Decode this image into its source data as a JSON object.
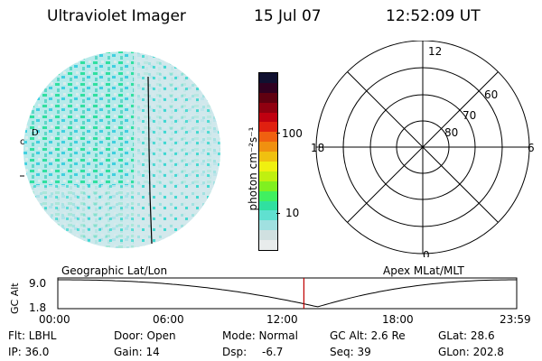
{
  "header": {
    "instrument": "Ultraviolet Imager",
    "date": "15 Jul 07",
    "time": "12:52:09 UT"
  },
  "colorbar": {
    "unit_label": "photon cm⁻²s⁻¹",
    "ticks": [
      "100",
      "10"
    ],
    "colors": [
      "#101030",
      "#300020",
      "#600010",
      "#900010",
      "#c00010",
      "#e02010",
      "#f06010",
      "#f09010",
      "#f0c010",
      "#f0f010",
      "#c0f010",
      "#80f020",
      "#40f060",
      "#30e0a0",
      "#60e0d0",
      "#a0e0e0",
      "#d0e0e0",
      "#e8ecec"
    ]
  },
  "polar": {
    "ring_labels": [
      "60",
      "70",
      "80"
    ],
    "mlt_labels": [
      "12",
      "18",
      "6",
      "0"
    ]
  },
  "track": {
    "left_label": "Geographic Lat/Lon",
    "right_label": "Apex MLat/MLT",
    "ylabel": "GC Alt",
    "y_ticks": [
      "9.0",
      "1.8"
    ],
    "x_ticks": [
      "00:00",
      "06:00",
      "12:00",
      "18:00",
      "23:59"
    ],
    "current_time_fraction": 0.5362,
    "accent_color": "#c00000"
  },
  "info": {
    "row1": [
      "Flt: LBHL",
      "Door: Open",
      "Mode: Normal",
      "GC Alt: 2.6 Re",
      "GLat: 28.6"
    ],
    "row2": [
      "IP: 36.0",
      "Gain: 14",
      "Dsp:",
      "-6.7",
      "Seq: 39",
      "GLon: 202.8"
    ]
  },
  "globe_fragments": [
    "с",
    "D"
  ]
}
